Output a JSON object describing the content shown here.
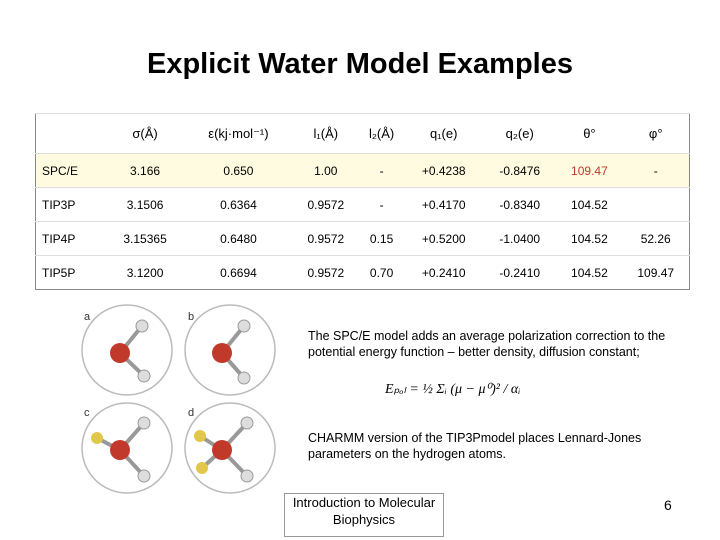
{
  "title": "Explicit Water Model Examples",
  "table": {
    "header": [
      "σ(Å)",
      "ε(kj·mol⁻¹)",
      "l₁(Å)",
      "l₂(Å)",
      "q₁(e)",
      "q₂(e)",
      "θ°",
      "φ°"
    ],
    "rows": [
      [
        "SPC/E",
        "3.166",
        "0.650",
        "1.00",
        "-",
        "+0.4238",
        "-0.8476",
        "109.47",
        "-"
      ],
      [
        "TIP3P",
        "3.1506",
        "0.6364",
        "0.9572",
        "-",
        "+0.4170",
        "-0.8340",
        "104.52",
        null
      ],
      [
        "TIP4P",
        "3.15365",
        "0.6480",
        "0.9572",
        "0.15",
        "+0.5200",
        "-1.0400",
        "104.52",
        "52.26"
      ],
      [
        "TIP5P",
        "3.1200",
        "0.6694",
        "0.9572",
        "0.70",
        "+0.2410",
        "-0.2410",
        "104.52",
        "109.47"
      ]
    ]
  },
  "figure": {
    "labels": [
      "a",
      "b",
      "c",
      "d"
    ]
  },
  "text": {
    "para1": "The SPC/E model adds an average polarization correction to the potential energy function – better density, diffusion constant;",
    "equation": "Eₚₒₗ = ½ Σᵢ (μ − μ⁰)² / αᵢ",
    "para2": "CHARMM version of the TIP3Pmodel places Lennard-Jones parameters on the hydrogen atoms."
  },
  "footer": "Introduction to Molecular Biophysics",
  "page_number": "6"
}
